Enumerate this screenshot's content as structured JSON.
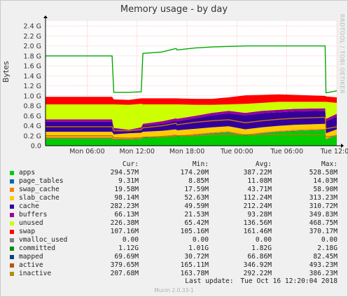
{
  "chart_data": {
    "type": "area",
    "title": "Memory usage - by day",
    "ylabel": "Bytes",
    "side_label": "RRDTOOL / TOBI OETIKER",
    "ylim": [
      0,
      2.5
    ],
    "y_ticks": [
      "0.0",
      "0.2 G",
      "0.4 G",
      "0.6 G",
      "0.8 G",
      "1.0 G",
      "1.2 G",
      "1.4 G",
      "1.6 G",
      "1.8 G",
      "2.0 G",
      "2.2 G",
      "2.4 G"
    ],
    "x_ticks": [
      "Mon 06:00",
      "Mon 12:00",
      "Mon 18:00",
      "Tue 00:00",
      "Tue 06:00",
      "Tue 12:00"
    ],
    "x_hours": [
      0,
      2,
      4,
      6,
      8,
      8.2,
      10,
      11.5,
      11.7,
      14,
      15.7,
      15.8,
      18,
      20,
      22,
      24,
      26,
      28,
      30,
      33.6,
      33.7,
      35
    ],
    "stack_series": [
      {
        "name": "apps",
        "color": "#00cc00",
        "values": [
          0.14,
          0.14,
          0.14,
          0.14,
          0.14,
          0.12,
          0.12,
          0.13,
          0.15,
          0.17,
          0.2,
          0.18,
          0.21,
          0.24,
          0.26,
          0.2,
          0.24,
          0.27,
          0.29,
          0.31,
          0.12,
          0.2
        ]
      },
      {
        "name": "page_tables",
        "color": "#0066b3",
        "values": [
          0.009,
          0.009,
          0.009,
          0.009,
          0.009,
          0.009,
          0.009,
          0.009,
          0.009,
          0.009,
          0.009,
          0.009,
          0.009,
          0.009,
          0.009,
          0.009,
          0.009,
          0.009,
          0.009,
          0.009,
          0.009,
          0.009
        ]
      },
      {
        "name": "swap_cache",
        "color": "#ff8000",
        "values": [
          0.03,
          0.03,
          0.03,
          0.03,
          0.03,
          0.02,
          0.02,
          0.02,
          0.02,
          0.02,
          0.02,
          0.02,
          0.02,
          0.02,
          0.02,
          0.02,
          0.02,
          0.02,
          0.02,
          0.02,
          0.02,
          0.02
        ]
      },
      {
        "name": "slab_cache",
        "color": "#ffcc00",
        "values": [
          0.1,
          0.1,
          0.1,
          0.1,
          0.1,
          0.08,
          0.1,
          0.1,
          0.1,
          0.1,
          0.1,
          0.1,
          0.1,
          0.1,
          0.1,
          0.1,
          0.1,
          0.1,
          0.1,
          0.1,
          0.1,
          0.1
        ]
      },
      {
        "name": "cache",
        "color": "#330099",
        "values": [
          0.2,
          0.2,
          0.2,
          0.2,
          0.2,
          0.1,
          0.05,
          0.08,
          0.12,
          0.14,
          0.17,
          0.18,
          0.21,
          0.24,
          0.26,
          0.28,
          0.28,
          0.27,
          0.27,
          0.26,
          0.24,
          0.25
        ]
      },
      {
        "name": "buffers",
        "color": "#990099",
        "values": [
          0.05,
          0.05,
          0.05,
          0.05,
          0.05,
          0.03,
          0.02,
          0.03,
          0.04,
          0.05,
          0.05,
          0.05,
          0.05,
          0.05,
          0.05,
          0.05,
          0.05,
          0.05,
          0.05,
          0.05,
          0.05,
          0.06
        ]
      },
      {
        "name": "unused",
        "color": "#ccff00",
        "values": [
          0.3,
          0.3,
          0.3,
          0.3,
          0.3,
          0.47,
          0.5,
          0.47,
          0.39,
          0.34,
          0.28,
          0.29,
          0.22,
          0.16,
          0.13,
          0.18,
          0.16,
          0.16,
          0.14,
          0.13,
          0.34,
          0.22
        ]
      },
      {
        "name": "swap",
        "color": "#ff0000",
        "values": [
          0.15,
          0.15,
          0.15,
          0.15,
          0.15,
          0.1,
          0.1,
          0.11,
          0.12,
          0.12,
          0.12,
          0.12,
          0.12,
          0.12,
          0.14,
          0.17,
          0.16,
          0.15,
          0.14,
          0.12,
          0.11,
          0.11
        ]
      }
    ],
    "line_series": [
      {
        "name": "committed",
        "color": "#00aa00",
        "values": [
          1.8,
          1.8,
          1.8,
          1.8,
          1.8,
          1.07,
          1.07,
          1.08,
          1.85,
          1.88,
          1.95,
          1.92,
          1.96,
          1.98,
          1.99,
          2.0,
          2.0,
          2.0,
          2.0,
          2.0,
          1.06,
          1.1
        ]
      },
      {
        "name": "active",
        "color": "#cc7700",
        "values": [
          0.38,
          0.38,
          0.38,
          0.38,
          0.38,
          0.3,
          0.3,
          0.32,
          0.36,
          0.4,
          0.45,
          0.42,
          0.47,
          0.5,
          0.52,
          0.46,
          0.5,
          0.53,
          0.55,
          0.57,
          0.34,
          0.38
        ]
      },
      {
        "name": "inactive",
        "color": "#b08000",
        "values": [
          0.2,
          0.2,
          0.2,
          0.2,
          0.2,
          0.16,
          0.15,
          0.16,
          0.17,
          0.18,
          0.19,
          0.2,
          0.2,
          0.21,
          0.22,
          0.22,
          0.22,
          0.22,
          0.22,
          0.22,
          0.18,
          0.2
        ]
      }
    ]
  },
  "legend": {
    "headers": {
      "cur": "Cur:",
      "min": "Min:",
      "avg": "Avg:",
      "max": "Max:"
    },
    "rows": [
      {
        "name": "apps",
        "color": "#00cc00",
        "cur": "294.57M",
        "min": "174.20M",
        "avg": "387.22M",
        "max": "528.58M"
      },
      {
        "name": "page_tables",
        "color": "#0066b3",
        "cur": "9.31M",
        "min": "8.85M",
        "avg": "11.08M",
        "max": "14.03M"
      },
      {
        "name": "swap_cache",
        "color": "#ff8000",
        "cur": "19.58M",
        "min": "17.59M",
        "avg": "43.71M",
        "max": "58.90M"
      },
      {
        "name": "slab_cache",
        "color": "#ffcc00",
        "cur": "98.14M",
        "min": "52.63M",
        "avg": "112.24M",
        "max": "313.23M"
      },
      {
        "name": "cache",
        "color": "#330099",
        "cur": "282.23M",
        "min": "49.59M",
        "avg": "212.24M",
        "max": "310.72M"
      },
      {
        "name": "buffers",
        "color": "#990099",
        "cur": "66.13M",
        "min": "21.53M",
        "avg": "93.28M",
        "max": "349.83M"
      },
      {
        "name": "unused",
        "color": "#ccff00",
        "cur": "226.38M",
        "min": "65.42M",
        "avg": "136.56M",
        "max": "468.75M"
      },
      {
        "name": "swap",
        "color": "#ff0000",
        "cur": "107.16M",
        "min": "105.16M",
        "avg": "161.46M",
        "max": "370.17M"
      },
      {
        "name": "vmalloc_used",
        "color": "#808080",
        "cur": "0.00",
        "min": "0.00",
        "avg": "0.00",
        "max": "0.00"
      },
      {
        "name": "committed",
        "color": "#008f00",
        "cur": "1.12G",
        "min": "1.01G",
        "avg": "1.82G",
        "max": "2.18G"
      },
      {
        "name": "mapped",
        "color": "#00487d",
        "cur": "69.69M",
        "min": "30.72M",
        "avg": "66.86M",
        "max": "82.45M"
      },
      {
        "name": "active",
        "color": "#b35a00",
        "cur": "379.65M",
        "min": "165.11M",
        "avg": "346.92M",
        "max": "493.23M"
      },
      {
        "name": "inactive",
        "color": "#b38f00",
        "cur": "207.68M",
        "min": "163.78M",
        "avg": "292.22M",
        "max": "386.23M"
      }
    ]
  },
  "footer": {
    "update_label": "Last update:",
    "update_time": "Tue Oct 16 12:20:04 2018",
    "version": "Munin 2.0.33-1"
  }
}
